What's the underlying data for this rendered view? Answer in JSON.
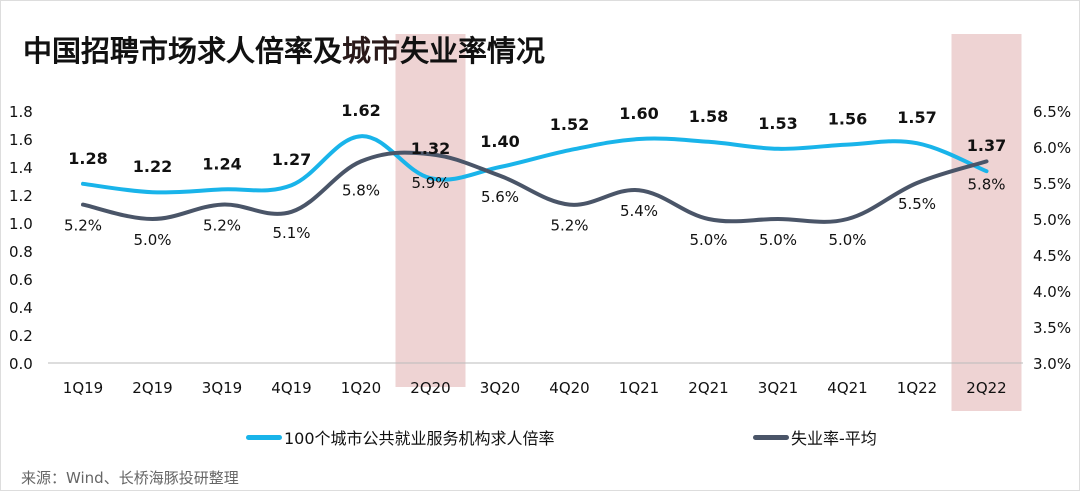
{
  "title_parts": [
    "中国招聘市场求人倍率及",
    "城市",
    "失业率情况"
  ],
  "source": "来源：Wind、长桥海豚投研整理",
  "colors": {
    "ratio": "#19b4ea",
    "unemployment": "#4a5568",
    "highlight": "#eed3d3"
  },
  "chart_data": {
    "type": "line",
    "categories": [
      "1Q19",
      "2Q19",
      "3Q19",
      "4Q19",
      "1Q20",
      "2Q20",
      "3Q20",
      "4Q20",
      "1Q21",
      "2Q21",
      "3Q21",
      "4Q21",
      "1Q22",
      "2Q22"
    ],
    "highlighted_categories": [
      "2Q20",
      "2Q22"
    ],
    "y_left": {
      "range": [
        0.0,
        1.8
      ],
      "ticks": [
        "0.0",
        "0.2",
        "0.4",
        "0.6",
        "0.8",
        "1.0",
        "1.2",
        "1.4",
        "1.6",
        "1.8"
      ]
    },
    "y_right": {
      "range": [
        3.0,
        6.5
      ],
      "ticks": [
        "3.0%",
        "3.5%",
        "4.0%",
        "4.5%",
        "5.0%",
        "5.5%",
        "6.0%",
        "6.5%"
      ]
    },
    "series": [
      {
        "name": "100个城市公共就业服务机构求人倍率",
        "axis": "left",
        "color": "#19b4ea",
        "values": [
          1.28,
          1.22,
          1.24,
          1.27,
          1.62,
          1.32,
          1.4,
          1.52,
          1.6,
          1.58,
          1.53,
          1.56,
          1.57,
          1.37
        ],
        "labels": [
          "1.28",
          "1.22",
          "1.24",
          "1.27",
          "1.62",
          "1.32",
          "1.40",
          "1.52",
          "1.60",
          "1.58",
          "1.53",
          "1.56",
          "1.57",
          "1.37"
        ]
      },
      {
        "name": "失业率-平均",
        "axis": "right",
        "color": "#4a5568",
        "values": [
          5.2,
          5.0,
          5.2,
          5.1,
          5.8,
          5.9,
          5.6,
          5.2,
          5.4,
          5.0,
          5.0,
          5.0,
          5.5,
          5.8
        ],
        "labels": [
          "5.2%",
          "5.0%",
          "5.2%",
          "5.1%",
          "5.8%",
          "5.9%",
          "5.6%",
          "5.2%",
          "5.4%",
          "5.0%",
          "5.0%",
          "5.0%",
          "5.5%",
          "5.8%"
        ]
      }
    ],
    "legend_position": "bottom",
    "grid": false
  }
}
